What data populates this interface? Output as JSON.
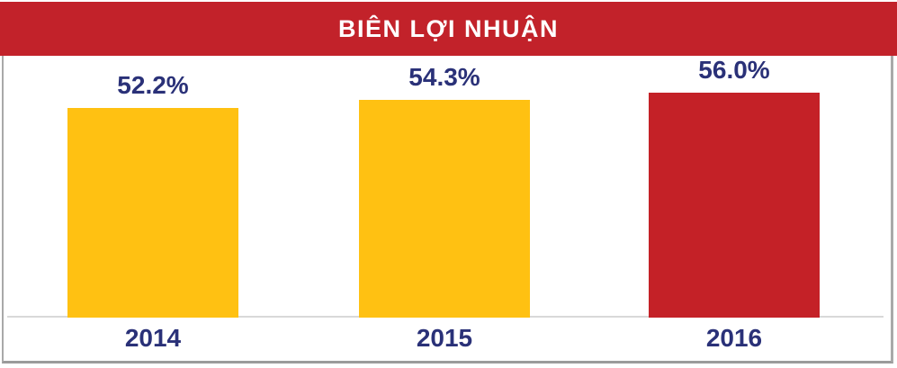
{
  "header": {
    "title": "BIÊN LỢI NHUẬN",
    "background_color": "#C2222A",
    "text_color": "#FFFFFF"
  },
  "chart_data": {
    "type": "bar",
    "title": "BIÊN LỢI NHUẬN",
    "categories": [
      "2014",
      "2015",
      "2016"
    ],
    "values": [
      52.2,
      54.3,
      56.0
    ],
    "value_labels": [
      "52.2%",
      "54.3%",
      "56.0%"
    ],
    "series": [
      {
        "name": "Biên lợi nhuận",
        "values": [
          52.2,
          54.3,
          56.0
        ]
      }
    ],
    "bar_colors": [
      "#FFC112",
      "#FFC112",
      "#C42127"
    ],
    "label_color": "#2A3178",
    "axis_line_color": "#D9D9D9",
    "xlabel": "",
    "ylabel": "",
    "grid": false,
    "legend": false,
    "value_unit": "%"
  }
}
